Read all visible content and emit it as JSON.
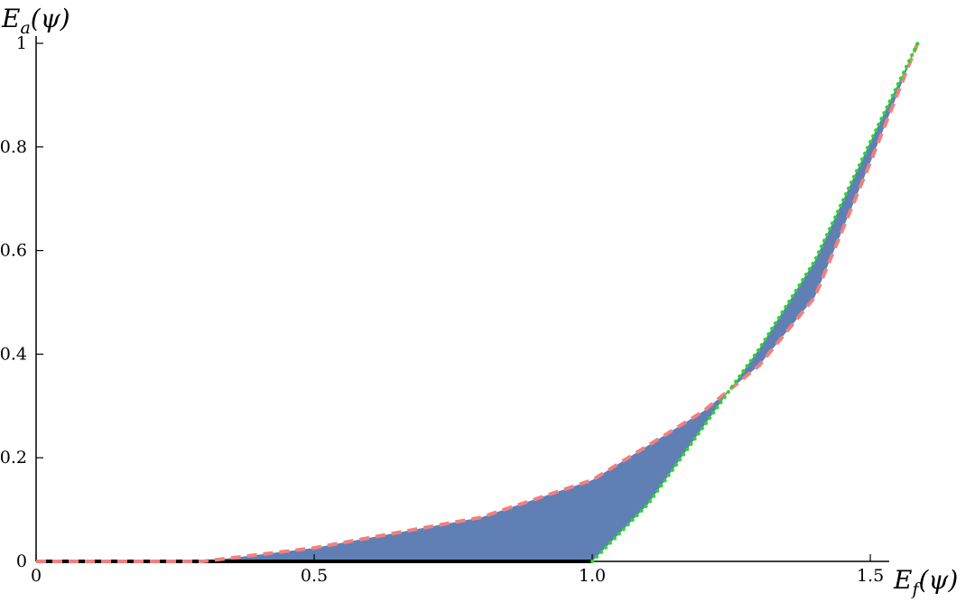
{
  "chart_data": {
    "type": "line",
    "xlim": [
      0,
      1.534
    ],
    "ylim": [
      0,
      1
    ],
    "xticks": [
      0,
      0.5,
      {
        "value": 1,
        "label": "1.0"
      },
      1.5
    ],
    "yticks": [
      0,
      0.2,
      0.4,
      0.6,
      0.8,
      1
    ],
    "x_label": {
      "main": "E",
      "sub": "f",
      "rest": "(ψ)"
    },
    "y_label": {
      "main": "E",
      "sub": "a",
      "rest": "(ψ)"
    },
    "fill_color": "#5f7fb5",
    "series": [
      {
        "color": "#000000",
        "style": "solid",
        "x": [
          0,
          1
        ],
        "values": [
          0,
          0
        ]
      },
      {
        "color": "#f08080",
        "style": "dashed",
        "x": [
          0,
          0.3,
          0.5,
          0.8,
          1.0,
          1.2,
          1.3,
          1.4,
          1.5,
          1.585
        ],
        "values": [
          0,
          0,
          0.026,
          0.085,
          0.157,
          0.29,
          0.378,
          0.51,
          0.77,
          1
        ]
      },
      {
        "color": "#22dd22",
        "style": "dotted",
        "x": [
          1,
          1.1,
          1.2,
          1.3,
          1.4,
          1.5,
          1.585
        ],
        "values": [
          0,
          0.11,
          0.26,
          0.41,
          0.58,
          0.81,
          1
        ]
      }
    ]
  }
}
